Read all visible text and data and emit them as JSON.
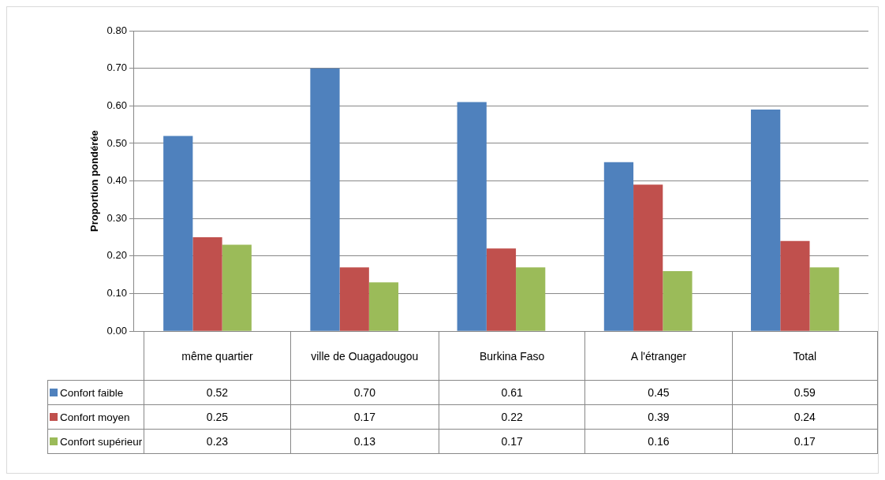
{
  "chart_data": {
    "type": "bar",
    "ylabel": "Proportion pondérée",
    "categories": [
      "même quartier",
      "ville de Ouagadougou",
      "Burkina Faso",
      "A l'étranger",
      "Total"
    ],
    "series": [
      {
        "name": "Confort faible",
        "color": "#4f81bd",
        "values": [
          0.52,
          0.7,
          0.61,
          0.45,
          0.59
        ],
        "value_labels": [
          "0.52",
          "0.70",
          "0.61",
          "0.45",
          "0.59"
        ]
      },
      {
        "name": "Confort moyen",
        "color": "#c0504d",
        "values": [
          0.25,
          0.17,
          0.22,
          0.39,
          0.24
        ],
        "value_labels": [
          "0.25",
          "0.17",
          "0.22",
          "0.39",
          "0.24"
        ]
      },
      {
        "name": "Confort supérieur",
        "color": "#9bbb59",
        "values": [
          0.23,
          0.13,
          0.17,
          0.16,
          0.17
        ],
        "value_labels": [
          "0.23",
          "0.13",
          "0.17",
          "0.16",
          "0.17"
        ]
      }
    ],
    "ylim": [
      0,
      0.8
    ],
    "yticks": [
      {
        "value": 0,
        "label": "0.00"
      },
      {
        "value": 0.1,
        "label": "0.10"
      },
      {
        "value": 0.2,
        "label": "0.20"
      },
      {
        "value": 0.3,
        "label": "0.30"
      },
      {
        "value": 0.4,
        "label": "0.40"
      },
      {
        "value": 0.5,
        "label": "0.50"
      },
      {
        "value": 0.6,
        "label": "0.60"
      },
      {
        "value": 0.7,
        "label": "0.70"
      },
      {
        "value": 0.8,
        "label": "0.80"
      }
    ],
    "grid": "y",
    "legend": "bottom left"
  }
}
